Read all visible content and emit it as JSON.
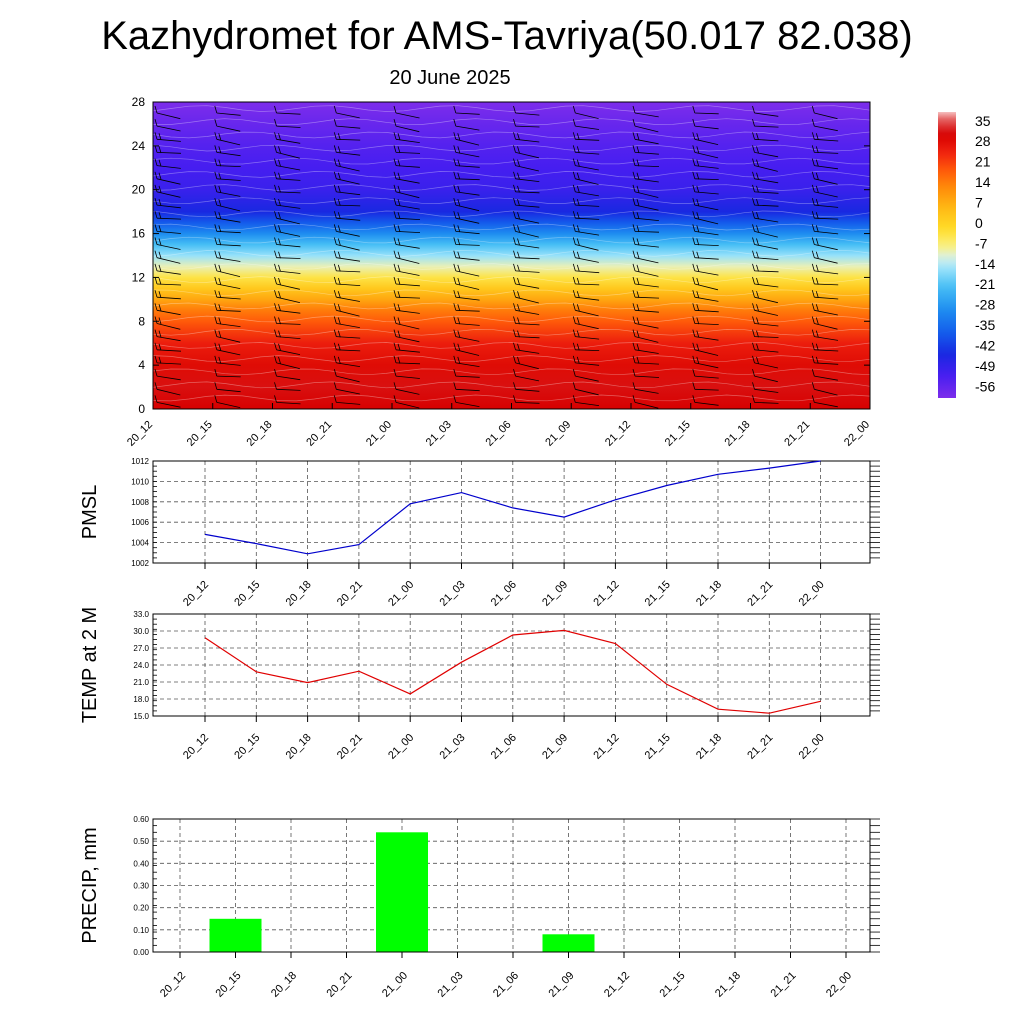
{
  "header": {
    "title": "Kazhydromet for AMS-Tavriya(50.017 82.038)",
    "date": "20 June 2025"
  },
  "colors": {
    "pmsl_line": "#0000cc",
    "temp_line": "#e00000",
    "precip_bar": "#00ff00",
    "wind_barb": "#000000"
  },
  "time_labels": [
    "20_12",
    "20_15",
    "20_18",
    "20_21",
    "21_00",
    "21_03",
    "21_06",
    "21_09",
    "21_12",
    "21_15",
    "21_18",
    "21_21",
    "22_00"
  ],
  "chart_data": [
    {
      "type": "heatmap",
      "name": "vertical-temperature-cross-section",
      "x": [
        "20_12",
        "20_15",
        "20_18",
        "20_21",
        "21_00",
        "21_03",
        "21_06",
        "21_09",
        "21_12",
        "21_15",
        "21_18",
        "21_21",
        "22_00"
      ],
      "y_ticks": [
        "0",
        "4",
        "8",
        "12",
        "16",
        "20",
        "24",
        "28"
      ],
      "ylim": [
        0,
        28
      ],
      "colorbar": {
        "labels": [
          "35",
          "28",
          "21",
          "14",
          "7",
          "0",
          "-7",
          "-14",
          "-21",
          "-28",
          "-35",
          "-42",
          "-49",
          "-56"
        ],
        "range": [
          -60,
          38
        ]
      },
      "temperature_profile": [
        {
          "y": 0,
          "t": 30
        },
        {
          "y": 2,
          "t": 31
        },
        {
          "y": 4,
          "t": 28
        },
        {
          "y": 6,
          "t": 25
        },
        {
          "y": 8,
          "t": 18
        },
        {
          "y": 9,
          "t": 14
        },
        {
          "y": 10,
          "t": 8
        },
        {
          "y": 11,
          "t": 2
        },
        {
          "y": 12,
          "t": -4
        },
        {
          "y": 13,
          "t": -10
        },
        {
          "y": 14,
          "t": -16
        },
        {
          "y": 15,
          "t": -22
        },
        {
          "y": 16,
          "t": -30
        },
        {
          "y": 17,
          "t": -38
        },
        {
          "y": 18,
          "t": -45
        },
        {
          "y": 20,
          "t": -50
        },
        {
          "y": 22,
          "t": -52
        },
        {
          "y": 24,
          "t": -54
        },
        {
          "y": 26,
          "t": -57
        },
        {
          "y": 28,
          "t": -60
        }
      ],
      "wind_barbs": "westerly barbs at every time step, 0–28 km"
    },
    {
      "type": "line",
      "name": "pmsl",
      "ylabel": "PMSL",
      "x": [
        "20_12",
        "20_15",
        "20_18",
        "20_21",
        "21_00",
        "21_03",
        "21_06",
        "21_09",
        "21_12",
        "21_15",
        "21_18",
        "21_21",
        "22_00"
      ],
      "values": [
        1004.8,
        1003.9,
        1002.9,
        1003.8,
        1007.8,
        1008.9,
        1007.4,
        1006.5,
        1008.2,
        1009.6,
        1010.7,
        1011.3,
        1012.0
      ],
      "ylim": [
        1002,
        1012
      ],
      "y_ticks": [
        "1002",
        "1004",
        "1006",
        "1008",
        "1010",
        "1012"
      ],
      "grid": true
    },
    {
      "type": "line",
      "name": "temp-2m",
      "ylabel": "TEMP at 2 M",
      "x": [
        "20_12",
        "20_15",
        "20_18",
        "20_21",
        "21_00",
        "21_03",
        "21_06",
        "21_09",
        "21_12",
        "21_15",
        "21_18",
        "21_21",
        "22_00"
      ],
      "values": [
        28.8,
        22.8,
        20.9,
        22.9,
        18.9,
        24.5,
        29.3,
        30.1,
        27.8,
        20.6,
        16.2,
        15.5,
        17.6
      ],
      "ylim": [
        15,
        33
      ],
      "y_ticks": [
        "15.0",
        "18.0",
        "21.0",
        "24.0",
        "27.0",
        "30.0",
        "33.0"
      ],
      "grid": true
    },
    {
      "type": "bar",
      "name": "precip",
      "ylabel": "PRECIP, mm",
      "categories": [
        "20_12",
        "20_15",
        "20_18",
        "20_21",
        "21_00",
        "21_03",
        "21_06",
        "21_09",
        "21_12",
        "21_15",
        "21_18",
        "21_21",
        "22_00"
      ],
      "values": [
        0,
        0.15,
        0,
        0,
        0.54,
        0,
        0,
        0.08,
        0,
        0,
        0,
        0,
        0
      ],
      "ylim": [
        0,
        0.6
      ],
      "y_ticks": [
        "0.00",
        "0.10",
        "0.20",
        "0.30",
        "0.40",
        "0.50",
        "0.60"
      ],
      "grid": true
    }
  ]
}
